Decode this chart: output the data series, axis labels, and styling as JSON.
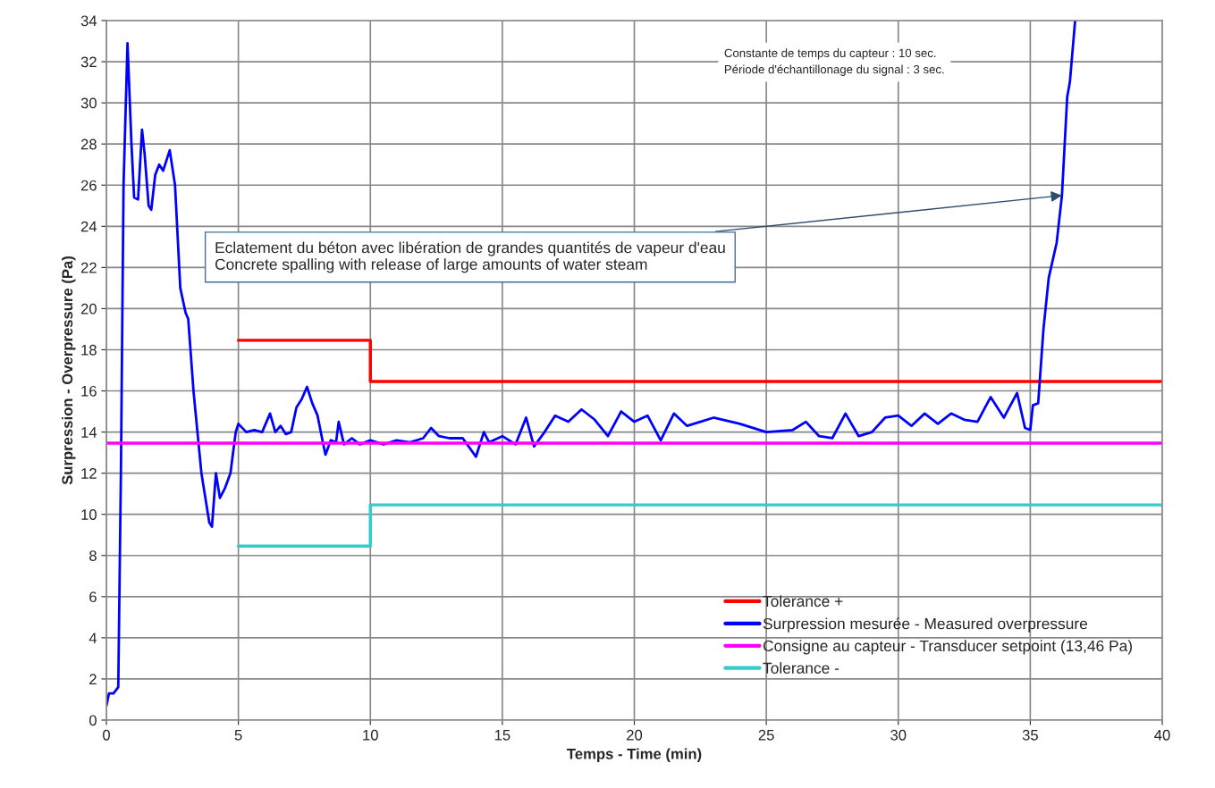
{
  "chart_data": {
    "type": "line",
    "xlabel": "Temps - Time (min)",
    "ylabel": "Surpression - Overpressure (Pa)",
    "xlim": [
      0,
      40
    ],
    "ylim": [
      0,
      34
    ],
    "xticks": [
      0,
      5,
      10,
      15,
      20,
      25,
      30,
      35,
      40
    ],
    "yticks": [
      0,
      2,
      4,
      6,
      8,
      10,
      12,
      14,
      16,
      18,
      20,
      22,
      24,
      26,
      28,
      30,
      32,
      34
    ],
    "grid": true,
    "legend": "bottom right",
    "marker": "none",
    "line_style": "solid",
    "series": [
      {
        "name": "Tolerance +",
        "color": "#ff0000",
        "x": [
          5,
          10,
          10,
          40
        ],
        "values": [
          18.46,
          18.46,
          16.46,
          16.46
        ]
      },
      {
        "name": "Surpression mesurée - Measured overpressure",
        "color": "#0000ff",
        "x": [
          0,
          0.1,
          0.27,
          0.45,
          0.55,
          0.65,
          0.8,
          0.95,
          1.05,
          1.2,
          1.35,
          1.45,
          1.6,
          1.7,
          1.85,
          2.0,
          2.15,
          2.4,
          2.6,
          2.8,
          3.0,
          3.1,
          3.3,
          3.6,
          3.9,
          4.0,
          4.15,
          4.3,
          4.5,
          4.7,
          4.9,
          5.0,
          5.3,
          5.6,
          5.9,
          6.2,
          6.4,
          6.6,
          6.8,
          7.0,
          7.2,
          7.4,
          7.6,
          7.8,
          8.0,
          8.2,
          8.3,
          8.5,
          8.7,
          8.8,
          9.0,
          9.3,
          9.6,
          10,
          10.5,
          11,
          11.5,
          12,
          12.3,
          12.6,
          13,
          13.5,
          14,
          14.3,
          14.5,
          15,
          15.5,
          15.9,
          16.2,
          16.6,
          17,
          17.5,
          18,
          18.5,
          19,
          19.5,
          20,
          20.5,
          21,
          21.5,
          22,
          22.5,
          23,
          24,
          25,
          26,
          26.5,
          27,
          27.5,
          28,
          28.5,
          29,
          29.5,
          30,
          30.5,
          31,
          31.5,
          32,
          32.5,
          33,
          33.5,
          34,
          34.5,
          34.8,
          35,
          35.1,
          35.3,
          35.5,
          35.7,
          36,
          36.2,
          36.4,
          36.5,
          36.7
        ],
        "values": [
          0.7,
          1.3,
          1.3,
          1.6,
          12,
          26,
          32.9,
          28,
          25.4,
          25.3,
          28.7,
          27.5,
          25,
          24.8,
          26.5,
          27,
          26.7,
          27.7,
          26,
          21,
          19.8,
          19.5,
          16,
          12,
          9.6,
          9.4,
          12,
          10.8,
          11.3,
          12,
          14,
          14.4,
          14,
          14.1,
          14,
          14.9,
          14,
          14.3,
          13.9,
          14,
          15.2,
          15.6,
          16.2,
          15.4,
          14.8,
          13.5,
          12.9,
          13.6,
          13.5,
          14.5,
          13.4,
          13.7,
          13.4,
          13.6,
          13.4,
          13.6,
          13.5,
          13.7,
          14.2,
          13.8,
          13.7,
          13.7,
          12.8,
          14,
          13.5,
          13.8,
          13.4,
          14.7,
          13.3,
          14,
          14.8,
          14.5,
          15.1,
          14.6,
          13.8,
          15,
          14.5,
          14.8,
          13.6,
          14.9,
          14.3,
          14.5,
          14.7,
          14.4,
          14,
          14.1,
          14.5,
          13.8,
          13.7,
          14.9,
          13.8,
          14,
          14.7,
          14.8,
          14.3,
          14.9,
          14.4,
          14.9,
          14.6,
          14.5,
          15.7,
          14.7,
          15.9,
          14.2,
          14.1,
          15.3,
          15.4,
          19,
          21.5,
          23.2,
          25.5,
          30.3,
          31,
          34
        ]
      },
      {
        "name": "Consigne au capteur - Transducer setpoint (13,46 Pa)",
        "color": "#ff00ff",
        "x": [
          0,
          40
        ],
        "values": [
          13.46,
          13.46
        ]
      },
      {
        "name": "Tolerance -",
        "color": "#33cccc",
        "x": [
          5,
          10,
          10,
          40
        ],
        "values": [
          8.46,
          8.46,
          10.46,
          10.46
        ]
      }
    ],
    "annotations": [
      {
        "text": "Eclatement du béton avec libération de grandes quantités de vapeur d'eau\nConcrete spalling with release of large amounts of water steam",
        "x": 36.2,
        "y": 25.5
      },
      "Constante de temps du capteur : 10 sec.\nPériode d'échantillonage du signal : 3 sec."
    ]
  }
}
